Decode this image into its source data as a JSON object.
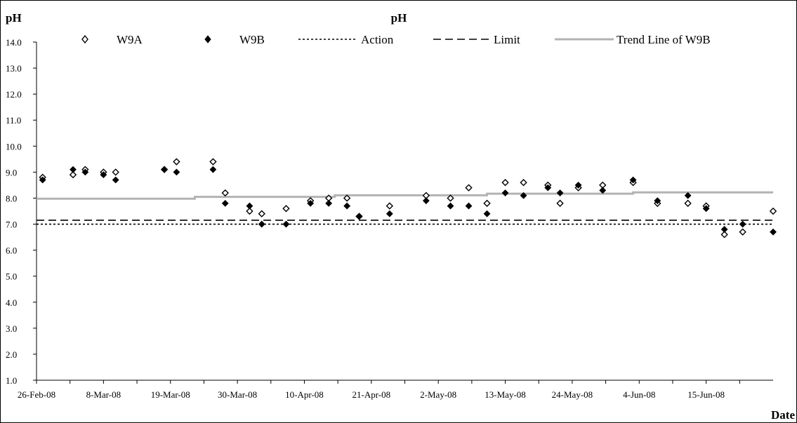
{
  "chart_data": {
    "type": "scatter",
    "title": "pH",
    "ylabel": "pH",
    "xlabel": "Date",
    "ylim": [
      1.0,
      14.0
    ],
    "yticks": [
      "1.0",
      "2.0",
      "3.0",
      "4.0",
      "5.0",
      "6.0",
      "7.0",
      "8.0",
      "9.0",
      "10.0",
      "11.0",
      "12.0",
      "13.0",
      "14.0"
    ],
    "xlim": [
      "2008-02-26",
      "2008-06-26"
    ],
    "xticks": [
      {
        "label": "26-Feb-08",
        "date": "2008-02-26"
      },
      {
        "label": "8-Mar-08",
        "date": "2008-03-08"
      },
      {
        "label": "19-Mar-08",
        "date": "2008-03-19"
      },
      {
        "label": "30-Mar-08",
        "date": "2008-03-30"
      },
      {
        "label": "10-Apr-08",
        "date": "2008-04-10"
      },
      {
        "label": "21-Apr-08",
        "date": "2008-04-21"
      },
      {
        "label": "2-May-08",
        "date": "2008-05-02"
      },
      {
        "label": "13-May-08",
        "date": "2008-05-13"
      },
      {
        "label": "24-May-08",
        "date": "2008-05-24"
      },
      {
        "label": "4-Jun-08",
        "date": "2008-06-04"
      },
      {
        "label": "15-Jun-08",
        "date": "2008-06-15"
      }
    ],
    "grid": false,
    "legend_position": "top",
    "series": [
      {
        "name": "W9A",
        "marker": "open-diamond",
        "color": "#000000",
        "points": [
          {
            "x": "2008-02-27",
            "y": 8.8
          },
          {
            "x": "2008-03-03",
            "y": 8.9
          },
          {
            "x": "2008-03-05",
            "y": 9.1
          },
          {
            "x": "2008-03-08",
            "y": 9.0
          },
          {
            "x": "2008-03-10",
            "y": 9.0
          },
          {
            "x": "2008-03-18",
            "y": 9.1
          },
          {
            "x": "2008-03-20",
            "y": 9.4
          },
          {
            "x": "2008-03-26",
            "y": 9.4
          },
          {
            "x": "2008-03-28",
            "y": 8.2
          },
          {
            "x": "2008-04-01",
            "y": 7.5
          },
          {
            "x": "2008-04-03",
            "y": 7.4
          },
          {
            "x": "2008-04-07",
            "y": 7.6
          },
          {
            "x": "2008-04-11",
            "y": 7.9
          },
          {
            "x": "2008-04-14",
            "y": 8.0
          },
          {
            "x": "2008-04-17",
            "y": 8.0
          },
          {
            "x": "2008-04-19",
            "y": 7.3
          },
          {
            "x": "2008-04-24",
            "y": 7.7
          },
          {
            "x": "2008-04-30",
            "y": 8.1
          },
          {
            "x": "2008-05-04",
            "y": 8.0
          },
          {
            "x": "2008-05-07",
            "y": 8.4
          },
          {
            "x": "2008-05-10",
            "y": 7.8
          },
          {
            "x": "2008-05-13",
            "y": 8.6
          },
          {
            "x": "2008-05-16",
            "y": 8.6
          },
          {
            "x": "2008-05-20",
            "y": 8.5
          },
          {
            "x": "2008-05-22",
            "y": 7.8
          },
          {
            "x": "2008-05-25",
            "y": 8.4
          },
          {
            "x": "2008-05-29",
            "y": 8.5
          },
          {
            "x": "2008-06-03",
            "y": 8.6
          },
          {
            "x": "2008-06-07",
            "y": 7.8
          },
          {
            "x": "2008-06-12",
            "y": 7.8
          },
          {
            "x": "2008-06-15",
            "y": 7.7
          },
          {
            "x": "2008-06-18",
            "y": 6.6
          },
          {
            "x": "2008-06-21",
            "y": 6.7
          },
          {
            "x": "2008-06-26",
            "y": 7.5
          }
        ]
      },
      {
        "name": "W9B",
        "marker": "filled-diamond",
        "color": "#000000",
        "points": [
          {
            "x": "2008-02-27",
            "y": 8.7
          },
          {
            "x": "2008-03-03",
            "y": 9.1
          },
          {
            "x": "2008-03-05",
            "y": 9.0
          },
          {
            "x": "2008-03-08",
            "y": 8.9
          },
          {
            "x": "2008-03-10",
            "y": 8.7
          },
          {
            "x": "2008-03-18",
            "y": 9.1
          },
          {
            "x": "2008-03-20",
            "y": 9.0
          },
          {
            "x": "2008-03-26",
            "y": 9.1
          },
          {
            "x": "2008-03-28",
            "y": 7.8
          },
          {
            "x": "2008-04-01",
            "y": 7.7
          },
          {
            "x": "2008-04-03",
            "y": 7.0
          },
          {
            "x": "2008-04-07",
            "y": 7.0
          },
          {
            "x": "2008-04-11",
            "y": 7.8
          },
          {
            "x": "2008-04-14",
            "y": 7.8
          },
          {
            "x": "2008-04-17",
            "y": 7.7
          },
          {
            "x": "2008-04-19",
            "y": 7.3
          },
          {
            "x": "2008-04-24",
            "y": 7.4
          },
          {
            "x": "2008-04-30",
            "y": 7.9
          },
          {
            "x": "2008-05-04",
            "y": 7.7
          },
          {
            "x": "2008-05-07",
            "y": 7.7
          },
          {
            "x": "2008-05-10",
            "y": 7.4
          },
          {
            "x": "2008-05-13",
            "y": 8.2
          },
          {
            "x": "2008-05-16",
            "y": 8.1
          },
          {
            "x": "2008-05-20",
            "y": 8.4
          },
          {
            "x": "2008-05-22",
            "y": 8.2
          },
          {
            "x": "2008-05-25",
            "y": 8.5
          },
          {
            "x": "2008-05-29",
            "y": 8.3
          },
          {
            "x": "2008-06-03",
            "y": 8.7
          },
          {
            "x": "2008-06-07",
            "y": 7.9
          },
          {
            "x": "2008-06-12",
            "y": 8.1
          },
          {
            "x": "2008-06-15",
            "y": 7.6
          },
          {
            "x": "2008-06-18",
            "y": 6.8
          },
          {
            "x": "2008-06-21",
            "y": 7.0
          },
          {
            "x": "2008-06-26",
            "y": 6.7
          }
        ]
      }
    ],
    "reference_lines": [
      {
        "name": "Action",
        "style": "dotted",
        "y": 7.0,
        "color": "#000000"
      },
      {
        "name": "Limit",
        "style": "dashed",
        "y": 7.15,
        "color": "#000000"
      }
    ],
    "trend_line": {
      "name": "Trend Line of W9B",
      "color": "#b3b3b3",
      "style": "step",
      "steps": [
        {
          "x": "2008-02-26",
          "y": 7.98
        },
        {
          "x": "2008-03-23",
          "y": 8.05
        },
        {
          "x": "2008-04-15",
          "y": 8.11
        },
        {
          "x": "2008-05-10",
          "y": 8.17
        },
        {
          "x": "2008-06-03",
          "y": 8.22
        },
        {
          "x": "2008-06-26",
          "y": 8.22
        }
      ]
    }
  }
}
